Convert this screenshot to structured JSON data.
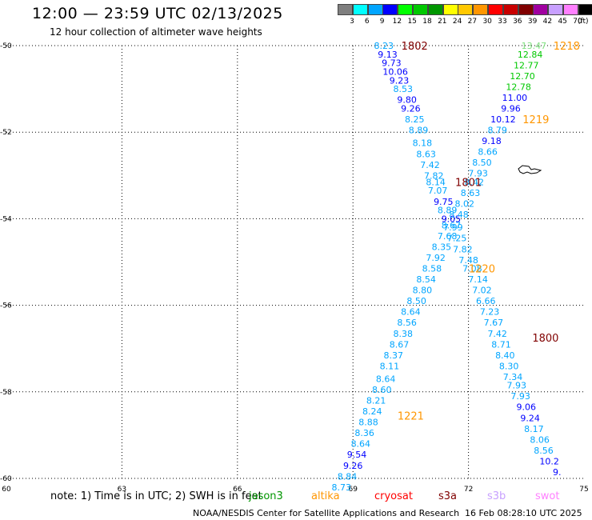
{
  "header": {
    "title": "12:00 — 23:59 UTC 02/13/2025",
    "subtitle": "12 hour collection of altimeter wave heights"
  },
  "color_scale": {
    "unit": "(ft)",
    "bins": [
      {
        "label": "3",
        "color": "#7f7f7f"
      },
      {
        "label": "6",
        "color": "#00ffff"
      },
      {
        "label": "9",
        "color": "#00a5ff"
      },
      {
        "label": "12",
        "color": "#0000ff"
      },
      {
        "label": "15",
        "color": "#00ff00"
      },
      {
        "label": "18",
        "color": "#00c800"
      },
      {
        "label": "21",
        "color": "#009600"
      },
      {
        "label": "24",
        "color": "#ffff00"
      },
      {
        "label": "27",
        "color": "#ffc800"
      },
      {
        "label": "30",
        "color": "#ff9600"
      },
      {
        "label": "33",
        "color": "#ff0000"
      },
      {
        "label": "36",
        "color": "#c80000"
      },
      {
        "label": "39",
        "color": "#800000"
      },
      {
        "label": "42",
        "color": "#a000a0"
      },
      {
        "label": "45",
        "color": "#c8a0ff"
      },
      {
        "label": "70",
        "color": "#ff80ff"
      },
      {
        "label": "",
        "color": "#000000"
      }
    ]
  },
  "axes": {
    "lon_ticks": [
      "60",
      "63",
      "66",
      "69",
      "72",
      "75"
    ],
    "lat_ticks": [
      "-50",
      "-52",
      "-54",
      "-56",
      "-58",
      "-60"
    ]
  },
  "tracks": [
    {
      "points": [
        {
          "t": "8.23",
          "c": "#00a5ff",
          "lon": 69.8,
          "lat": -50.0
        },
        {
          "t": "9.13",
          "c": "#0000ff",
          "lon": 69.9,
          "lat": -50.2
        },
        {
          "t": "9.73",
          "c": "#0000ff",
          "lon": 70.0,
          "lat": -50.4
        },
        {
          "t": "10.06",
          "c": "#0000ff",
          "lon": 70.1,
          "lat": -50.6
        },
        {
          "t": "9.23",
          "c": "#0000ff",
          "lon": 70.2,
          "lat": -50.8
        },
        {
          "t": "8.53",
          "c": "#00a5ff",
          "lon": 70.3,
          "lat": -51.0
        },
        {
          "t": "9.80",
          "c": "#0000ff",
          "lon": 70.4,
          "lat": -51.25
        },
        {
          "t": "9.26",
          "c": "#0000ff",
          "lon": 70.5,
          "lat": -51.45
        },
        {
          "t": "8.25",
          "c": "#00a5ff",
          "lon": 70.6,
          "lat": -51.7
        },
        {
          "t": "8.89",
          "c": "#00a5ff",
          "lon": 70.7,
          "lat": -51.95
        },
        {
          "t": "8.18",
          "c": "#00a5ff",
          "lon": 70.8,
          "lat": -52.25
        },
        {
          "t": "8.63",
          "c": "#00a5ff",
          "lon": 70.9,
          "lat": -52.5
        },
        {
          "t": "7.42",
          "c": "#00a5ff",
          "lon": 71.0,
          "lat": -52.75
        },
        {
          "t": "7.82",
          "c": "#00a5ff",
          "lon": 71.1,
          "lat": -53.0
        },
        {
          "t": "8.14",
          "c": "#00a5ff",
          "lon": 71.15,
          "lat": -53.15
        },
        {
          "t": "7.07",
          "c": "#00a5ff",
          "lon": 71.2,
          "lat": -53.35
        },
        {
          "t": "9.75",
          "c": "#0000ff",
          "lon": 71.35,
          "lat": -53.6
        },
        {
          "t": "8.89",
          "c": "#00a5ff",
          "lon": 71.45,
          "lat": -53.8
        },
        {
          "t": "9.05",
          "c": "#0000ff",
          "lon": 71.55,
          "lat": -54.0
        },
        {
          "t": "7.99",
          "c": "#00a5ff",
          "lon": 71.6,
          "lat": -54.2
        },
        {
          "t": "7.25",
          "c": "#00a5ff",
          "lon": 71.7,
          "lat": -54.45
        },
        {
          "t": "7.82",
          "c": "#00a5ff",
          "lon": 71.85,
          "lat": -54.7
        },
        {
          "t": "7.48",
          "c": "#00a5ff",
          "lon": 72.0,
          "lat": -54.95
        },
        {
          "t": "7.08",
          "c": "#00a5ff",
          "lon": 72.1,
          "lat": -55.15
        },
        {
          "t": "7.14",
          "c": "#00a5ff",
          "lon": 72.25,
          "lat": -55.4
        },
        {
          "t": "7.02",
          "c": "#00a5ff",
          "lon": 72.35,
          "lat": -55.65
        },
        {
          "t": "6.66",
          "c": "#00a5ff",
          "lon": 72.45,
          "lat": -55.9
        },
        {
          "t": "7.23",
          "c": "#00a5ff",
          "lon": 72.55,
          "lat": -56.15
        },
        {
          "t": "7.67",
          "c": "#00a5ff",
          "lon": 72.65,
          "lat": -56.4
        },
        {
          "t": "7.42",
          "c": "#00a5ff",
          "lon": 72.75,
          "lat": -56.65
        },
        {
          "t": "8.71",
          "c": "#00a5ff",
          "lon": 72.85,
          "lat": -56.9
        },
        {
          "t": "8.40",
          "c": "#00a5ff",
          "lon": 72.95,
          "lat": -57.15
        },
        {
          "t": "8.30",
          "c": "#00a5ff",
          "lon": 73.05,
          "lat": -57.4
        },
        {
          "t": "7.34",
          "c": "#00a5ff",
          "lon": 73.15,
          "lat": -57.65
        },
        {
          "t": "7.93",
          "c": "#00a5ff",
          "lon": 73.25,
          "lat": -57.85
        },
        {
          "t": "7.93",
          "c": "#00a5ff",
          "lon": 73.35,
          "lat": -58.1
        },
        {
          "t": "9.06",
          "c": "#0000ff",
          "lon": 73.5,
          "lat": -58.35
        },
        {
          "t": "9.24",
          "c": "#0000ff",
          "lon": 73.6,
          "lat": -58.6
        },
        {
          "t": "8.17",
          "c": "#00a5ff",
          "lon": 73.7,
          "lat": -58.85
        },
        {
          "t": "8.06",
          "c": "#00a5ff",
          "lon": 73.85,
          "lat": -59.1
        },
        {
          "t": "8.56",
          "c": "#00a5ff",
          "lon": 73.95,
          "lat": -59.35
        },
        {
          "t": "10.2",
          "c": "#0000ff",
          "lon": 74.1,
          "lat": -59.6
        },
        {
          "t": "9.",
          "c": "#0000ff",
          "lon": 74.3,
          "lat": -59.85
        }
      ]
    },
    {
      "points": [
        {
          "t": "13.47",
          "c": "#7fe07f",
          "lon": 73.7,
          "lat": -50.0
        },
        {
          "t": "12.84",
          "c": "#00c800",
          "lon": 73.6,
          "lat": -50.2
        },
        {
          "t": "12.77",
          "c": "#00c800",
          "lon": 73.5,
          "lat": -50.45
        },
        {
          "t": "12.70",
          "c": "#00c800",
          "lon": 73.4,
          "lat": -50.7
        },
        {
          "t": "12.78",
          "c": "#00c800",
          "lon": 73.3,
          "lat": -50.95
        },
        {
          "t": "11.00",
          "c": "#0000ff",
          "lon": 73.2,
          "lat": -51.2
        },
        {
          "t": "9.96",
          "c": "#0000ff",
          "lon": 73.1,
          "lat": -51.45
        },
        {
          "t": "10.12",
          "c": "#0000ff",
          "lon": 72.9,
          "lat": -51.7
        },
        {
          "t": "8.79",
          "c": "#00a5ff",
          "lon": 72.75,
          "lat": -51.95
        },
        {
          "t": "9.18",
          "c": "#0000ff",
          "lon": 72.6,
          "lat": -52.2
        },
        {
          "t": "8.66",
          "c": "#00a5ff",
          "lon": 72.5,
          "lat": -52.45
        },
        {
          "t": "8.50",
          "c": "#00a5ff",
          "lon": 72.35,
          "lat": -52.7
        },
        {
          "t": "7.93",
          "c": "#00a5ff",
          "lon": 72.25,
          "lat": -52.95
        },
        {
          "t": "8.42",
          "c": "#00a5ff",
          "lon": 72.15,
          "lat": -53.15
        },
        {
          "t": "8.63",
          "c": "#00a5ff",
          "lon": 72.05,
          "lat": -53.4
        },
        {
          "t": "8.02",
          "c": "#00a5ff",
          "lon": 71.9,
          "lat": -53.65
        },
        {
          "t": "8.48",
          "c": "#00a5ff",
          "lon": 71.75,
          "lat": -53.9
        },
        {
          "t": "8.67",
          "c": "#00a5ff",
          "lon": 71.55,
          "lat": -54.15
        },
        {
          "t": "7.68",
          "c": "#00a5ff",
          "lon": 71.45,
          "lat": -54.4
        },
        {
          "t": "8.35",
          "c": "#00a5ff",
          "lon": 71.3,
          "lat": -54.65
        },
        {
          "t": "7.92",
          "c": "#00a5ff",
          "lon": 71.15,
          "lat": -54.9
        },
        {
          "t": "8.58",
          "c": "#00a5ff",
          "lon": 71.05,
          "lat": -55.15
        },
        {
          "t": "8.54",
          "c": "#00a5ff",
          "lon": 70.9,
          "lat": -55.4
        },
        {
          "t": "8.80",
          "c": "#00a5ff",
          "lon": 70.8,
          "lat": -55.65
        },
        {
          "t": "8.50",
          "c": "#00a5ff",
          "lon": 70.65,
          "lat": -55.9
        },
        {
          "t": "8.64",
          "c": "#00a5ff",
          "lon": 70.5,
          "lat": -56.15
        },
        {
          "t": "8.56",
          "c": "#00a5ff",
          "lon": 70.4,
          "lat": -56.4
        },
        {
          "t": "8.38",
          "c": "#00a5ff",
          "lon": 70.3,
          "lat": -56.65
        },
        {
          "t": "8.67",
          "c": "#00a5ff",
          "lon": 70.2,
          "lat": -56.9
        },
        {
          "t": "8.37",
          "c": "#00a5ff",
          "lon": 70.05,
          "lat": -57.15
        },
        {
          "t": "8.11",
          "c": "#00a5ff",
          "lon": 69.95,
          "lat": -57.4
        },
        {
          "t": "8.64",
          "c": "#00a5ff",
          "lon": 69.85,
          "lat": -57.7
        },
        {
          "t": "8.60",
          "c": "#00a5ff",
          "lon": 69.75,
          "lat": -57.95
        },
        {
          "t": "8.21",
          "c": "#00a5ff",
          "lon": 69.6,
          "lat": -58.2
        },
        {
          "t": "8.24",
          "c": "#00a5ff",
          "lon": 69.5,
          "lat": -58.45
        },
        {
          "t": "8.88",
          "c": "#00a5ff",
          "lon": 69.4,
          "lat": -58.7
        },
        {
          "t": "8.36",
          "c": "#00a5ff",
          "lon": 69.3,
          "lat": -58.95
        },
        {
          "t": "8.64",
          "c": "#00a5ff",
          "lon": 69.2,
          "lat": -59.2
        },
        {
          "t": "9.54",
          "c": "#0000ff",
          "lon": 69.1,
          "lat": -59.45
        },
        {
          "t": "9.26",
          "c": "#0000ff",
          "lon": 69.0,
          "lat": -59.7
        },
        {
          "t": "8.84",
          "c": "#00a5ff",
          "lon": 68.85,
          "lat": -59.95
        },
        {
          "t": "8.73",
          "c": "#00a5ff",
          "lon": 68.7,
          "lat": -60.2
        }
      ]
    }
  ],
  "time_labels": [
    {
      "t": "1802",
      "c": "#800000",
      "lon": 70.6,
      "lat": -50.0
    },
    {
      "t": "1218",
      "c": "#ff9600",
      "lon": 74.55,
      "lat": -50.0
    },
    {
      "t": "1219",
      "c": "#ff9600",
      "lon": 73.75,
      "lat": -51.7
    },
    {
      "t": "1801",
      "c": "#800000",
      "lon": 72.0,
      "lat": -53.15
    },
    {
      "t": "1220",
      "c": "#ff9600",
      "lon": 72.35,
      "lat": -55.15
    },
    {
      "t": "1800",
      "c": "#800000",
      "lon": 74.0,
      "lat": -56.75
    },
    {
      "t": "1221",
      "c": "#ff9600",
      "lon": 70.5,
      "lat": -58.55
    }
  ],
  "footer": {
    "note": "note: 1) Time is in UTC; 2) SWH is in feet",
    "satellites": [
      {
        "name": "jason3",
        "color": "#009600"
      },
      {
        "name": "altika",
        "color": "#ff9600"
      },
      {
        "name": "cryosat",
        "color": "#ff0000"
      },
      {
        "name": "s3a",
        "color": "#800000"
      },
      {
        "name": "s3b",
        "color": "#c8a0ff"
      },
      {
        "name": "swot",
        "color": "#ff80ff"
      }
    ],
    "credit": "NOAA/NESDIS Center for Satellite Applications and Research",
    "timestamp": "16 Feb 08:28:10 UTC 2025"
  }
}
